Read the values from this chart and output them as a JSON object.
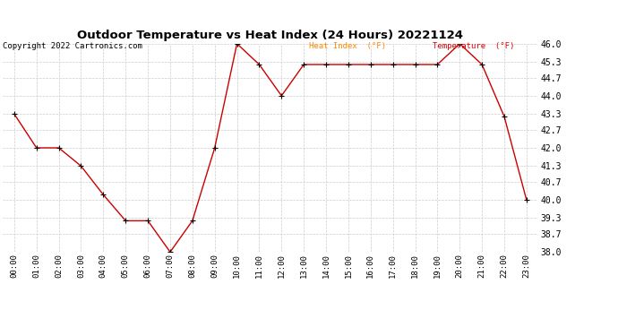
{
  "title": "Outdoor Temperature vs Heat Index (24 Hours) 20221124",
  "copyright": "Copyright 2022 Cartronics.com",
  "legend_heat": "Heat Index  (°F)",
  "legend_temp": "Temperature  (°F)",
  "x_labels": [
    "00:00",
    "01:00",
    "02:00",
    "03:00",
    "04:00",
    "05:00",
    "06:00",
    "07:00",
    "08:00",
    "09:00",
    "10:00",
    "11:00",
    "12:00",
    "13:00",
    "14:00",
    "15:00",
    "16:00",
    "17:00",
    "18:00",
    "19:00",
    "20:00",
    "21:00",
    "22:00",
    "23:00"
  ],
  "temperature": [
    43.3,
    42.0,
    42.0,
    41.3,
    40.2,
    39.2,
    39.2,
    38.0,
    39.2,
    42.0,
    46.0,
    45.2,
    44.0,
    45.2,
    45.2,
    45.2,
    45.2,
    45.2,
    45.2,
    45.2,
    46.0,
    45.2,
    43.2,
    40.0
  ],
  "line_color": "#cc0000",
  "marker_color": "#000000",
  "bg_color": "#ffffff",
  "grid_color": "#cccccc",
  "title_color": "#000000",
  "copyright_color": "#000000",
  "legend_heat_color": "#ff8800",
  "legend_temp_color": "#dd0000",
  "ylim": [
    38.0,
    46.0
  ],
  "yticks": [
    38.0,
    38.7,
    39.3,
    40.0,
    40.7,
    41.3,
    42.0,
    42.7,
    43.3,
    44.0,
    44.7,
    45.3,
    46.0
  ]
}
